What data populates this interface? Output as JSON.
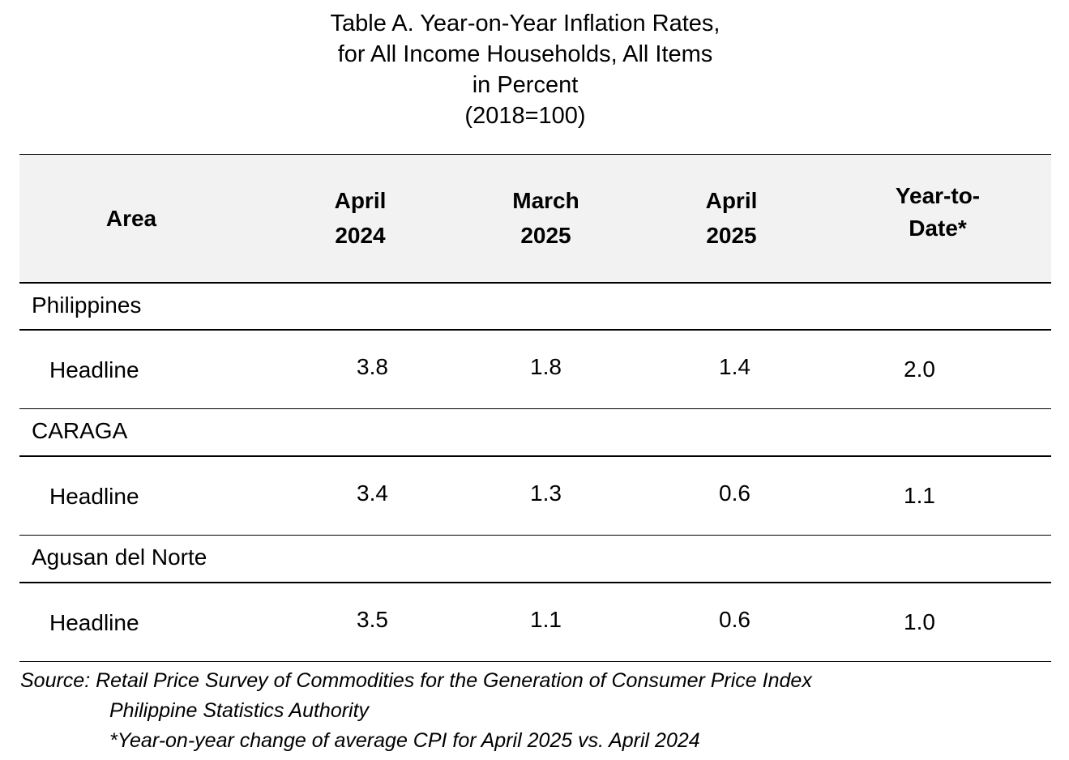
{
  "title": {
    "lines": [
      "Table A. Year-on-Year Inflation Rates,",
      "for All Income Households, All Items",
      "in Percent",
      "(2018=100)"
    ]
  },
  "table": {
    "headers": {
      "area": [
        "Area"
      ],
      "april_2024": [
        "April",
        "2024"
      ],
      "march_2025": [
        "March",
        "2025"
      ],
      "april_2025": [
        "April",
        "2025"
      ],
      "ytd": [
        "Year-to-",
        "Date*"
      ]
    },
    "groups": [
      {
        "name": "Philippines",
        "row": {
          "label": "Headline",
          "april_2024": "3.8",
          "march_2025": "1.8",
          "april_2025": "1.4",
          "ytd": "2.0"
        }
      },
      {
        "name": "CARAGA",
        "row": {
          "label": "Headline",
          "april_2024": "3.4",
          "march_2025": "1.3",
          "april_2025": "0.6",
          "ytd": "1.1"
        }
      },
      {
        "name": "Agusan del Norte",
        "row": {
          "label": "Headline",
          "april_2024": "3.5",
          "march_2025": "1.1",
          "april_2025": "0.6",
          "ytd": "1.0"
        }
      }
    ]
  },
  "footnote": {
    "source": "Source: Retail Price Survey of Commodities for the Generation of Consumer Price Index",
    "agency": "Philippine Statistics Authority",
    "note": "*Year-on-year change of average CPI for April 2025 vs. April 2024"
  }
}
